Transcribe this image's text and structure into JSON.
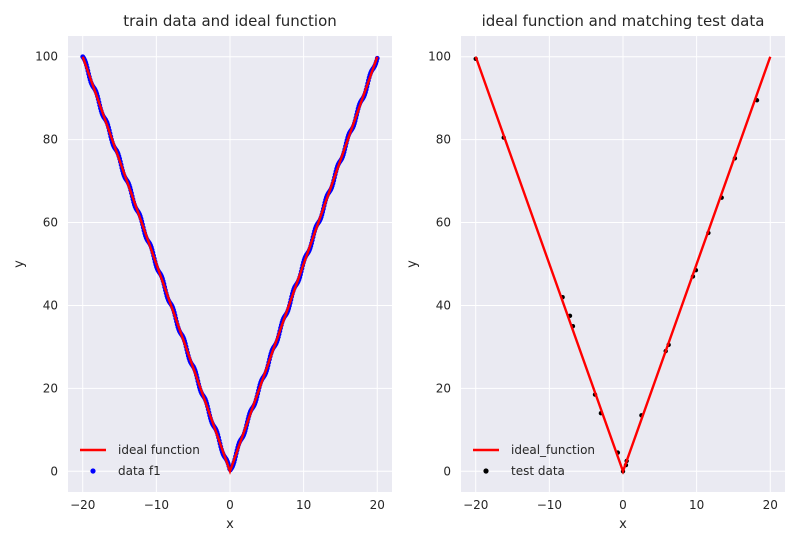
{
  "colors": {
    "panel_bg": "#EAEAF2",
    "grid": "#FFFFFF",
    "ideal_line": "#FF0000",
    "train_points": "#0000FF",
    "test_points": "#000000"
  },
  "chart_data": [
    {
      "type": "scatter",
      "title": "train data and ideal function",
      "xlabel": "x",
      "ylabel": "y",
      "xlim": [
        -22,
        22
      ],
      "ylim": [
        -5,
        105
      ],
      "xticks": [
        -20,
        -10,
        0,
        10,
        20
      ],
      "yticks": [
        0,
        20,
        40,
        60,
        80,
        100
      ],
      "xtick_labels": [
        "−20",
        "−10",
        "0",
        "10",
        "20"
      ],
      "ytick_labels": [
        "0",
        "20",
        "40",
        "60",
        "80",
        "100"
      ],
      "grid": true,
      "legend_position": "bottom-left",
      "series": [
        {
          "name": "ideal function",
          "kind": "line",
          "color": "#FF0000",
          "x": [
            -20,
            0,
            20
          ],
          "y": [
            100,
            0,
            100
          ]
        },
        {
          "name": "data f1",
          "kind": "scatter",
          "color": "#0000FF",
          "function": "y = 5*|x|",
          "x_range": [
            -20,
            20
          ],
          "point_count": 400
        }
      ]
    },
    {
      "type": "scatter",
      "title": "ideal function and matching test data",
      "xlabel": "x",
      "ylabel": "y",
      "xlim": [
        -22,
        22
      ],
      "ylim": [
        -5,
        105
      ],
      "xticks": [
        -20,
        -10,
        0,
        10,
        20
      ],
      "yticks": [
        0,
        20,
        40,
        60,
        80,
        100
      ],
      "xtick_labels": [
        "−20",
        "−10",
        "0",
        "10",
        "20"
      ],
      "ytick_labels": [
        "0",
        "20",
        "40",
        "60",
        "80",
        "100"
      ],
      "grid": true,
      "legend_position": "bottom-left",
      "series": [
        {
          "name": "ideal_function",
          "kind": "line",
          "color": "#FF0000",
          "x": [
            -20,
            0,
            20
          ],
          "y": [
            100,
            0,
            100
          ]
        },
        {
          "name": "test data",
          "kind": "scatter",
          "color": "#000000",
          "x": [
            -20,
            -16.2,
            -8.2,
            -7.2,
            -6.8,
            -3.8,
            -3.0,
            -0.7,
            0.0,
            0.4,
            0.5,
            2.5,
            5.8,
            6.2,
            9.5,
            9.9,
            11.6,
            13.4,
            15.2,
            18.2
          ],
          "y": [
            99.5,
            80.5,
            42.0,
            37.5,
            35.0,
            18.5,
            14.0,
            4.5,
            0.0,
            1.5,
            2.5,
            13.5,
            29.0,
            30.5,
            47.0,
            48.5,
            57.5,
            66.0,
            75.5,
            89.5
          ]
        }
      ]
    }
  ]
}
